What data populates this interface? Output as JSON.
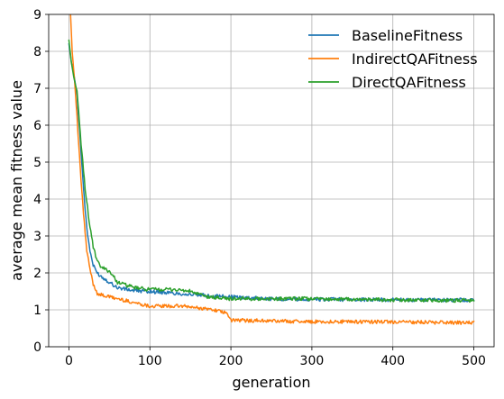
{
  "chart_data": {
    "type": "line",
    "title": "",
    "xlabel": "generation",
    "ylabel": "average mean fitness value",
    "xlim": [
      -25,
      525
    ],
    "ylim": [
      0,
      9
    ],
    "xticks": [
      0,
      100,
      200,
      300,
      400,
      500
    ],
    "yticks": [
      0,
      1,
      2,
      3,
      4,
      5,
      6,
      7,
      8,
      9
    ],
    "grid": true,
    "legend_position": "top-right",
    "series": [
      {
        "name": "BaselineFitness",
        "color": "#1f77b4",
        "x": [
          0,
          3,
          6,
          10,
          14,
          18,
          22,
          26,
          30,
          35,
          40,
          50,
          60,
          80,
          100,
          130,
          160,
          200,
          250,
          300,
          350,
          400,
          450,
          500
        ],
        "y": [
          8.2,
          7.7,
          7.4,
          6.8,
          5.6,
          4.3,
          3.2,
          2.6,
          2.2,
          2.0,
          1.9,
          1.75,
          1.6,
          1.52,
          1.5,
          1.45,
          1.4,
          1.35,
          1.3,
          1.28,
          1.28,
          1.27,
          1.27,
          1.27
        ]
      },
      {
        "name": "IndirectQAFitness",
        "color": "#ff7f0e",
        "x": [
          0,
          2,
          4,
          7,
          10,
          14,
          18,
          22,
          26,
          30,
          35,
          40,
          60,
          80,
          100,
          140,
          180,
          195,
          200,
          250,
          300,
          350,
          400,
          450,
          500
        ],
        "y": [
          9.2,
          9.0,
          8.0,
          7.2,
          6.2,
          4.8,
          3.6,
          2.6,
          2.1,
          1.7,
          1.45,
          1.4,
          1.3,
          1.2,
          1.1,
          1.1,
          1.0,
          0.9,
          0.72,
          0.7,
          0.68,
          0.68,
          0.67,
          0.66,
          0.65
        ]
      },
      {
        "name": "DirectQAFitness",
        "color": "#2ca02c",
        "x": [
          0,
          3,
          6,
          10,
          15,
          20,
          25,
          30,
          35,
          40,
          50,
          60,
          80,
          100,
          130,
          150,
          170,
          200,
          250,
          300,
          350,
          400,
          450,
          500
        ],
        "y": [
          8.3,
          7.7,
          7.3,
          6.9,
          5.5,
          4.3,
          3.4,
          2.7,
          2.3,
          2.15,
          2.05,
          1.75,
          1.6,
          1.55,
          1.55,
          1.5,
          1.35,
          1.3,
          1.3,
          1.3,
          1.28,
          1.27,
          1.26,
          1.25
        ]
      }
    ]
  }
}
